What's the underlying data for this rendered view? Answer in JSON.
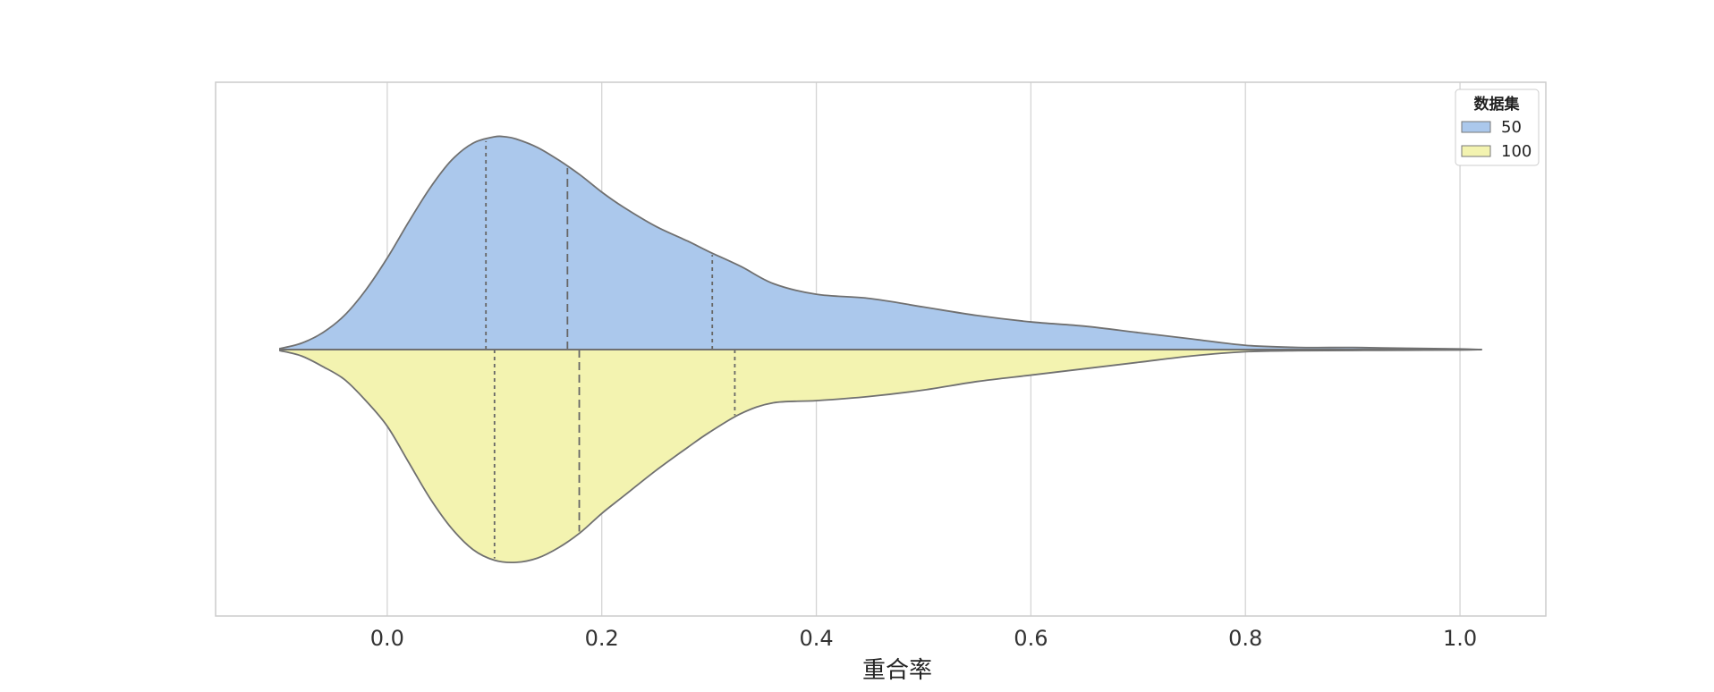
{
  "chart_data": {
    "type": "violin",
    "split": true,
    "orientation": "horizontal",
    "xlabel": "重合率",
    "ylabel": "",
    "xlim": [
      -0.16,
      1.08
    ],
    "xticks": [
      0.0,
      0.2,
      0.4,
      0.6,
      0.8,
      1.0
    ],
    "xtick_labels": [
      "0.0",
      "0.2",
      "0.4",
      "0.6",
      "0.8",
      "1.0"
    ],
    "grid": "vertical",
    "legend": {
      "title": "数据集",
      "placement": "top-right"
    },
    "series": [
      {
        "name": "50",
        "side": "upper",
        "color": "#abc8ec",
        "density_x": [
          -0.1,
          -0.08,
          -0.06,
          -0.04,
          -0.02,
          0.0,
          0.02,
          0.04,
          0.06,
          0.08,
          0.1,
          0.11,
          0.12,
          0.14,
          0.16,
          0.18,
          0.2,
          0.22,
          0.25,
          0.28,
          0.3,
          0.33,
          0.36,
          0.4,
          0.45,
          0.5,
          0.55,
          0.6,
          0.65,
          0.7,
          0.75,
          0.8,
          0.85,
          0.9,
          0.95,
          1.0,
          1.02
        ],
        "density": [
          0.005,
          0.03,
          0.08,
          0.16,
          0.28,
          0.43,
          0.6,
          0.76,
          0.89,
          0.97,
          1.0,
          1.0,
          0.99,
          0.95,
          0.89,
          0.82,
          0.74,
          0.67,
          0.58,
          0.51,
          0.46,
          0.39,
          0.31,
          0.26,
          0.24,
          0.2,
          0.16,
          0.13,
          0.11,
          0.08,
          0.05,
          0.02,
          0.01,
          0.01,
          0.006,
          0.003,
          0.0
        ],
        "quartiles": [
          0.092,
          0.168,
          0.303
        ]
      },
      {
        "name": "100",
        "side": "lower",
        "color": "#f3f3b0",
        "density_x": [
          -0.1,
          -0.08,
          -0.06,
          -0.04,
          -0.02,
          0.0,
          0.02,
          0.04,
          0.06,
          0.08,
          0.1,
          0.12,
          0.14,
          0.16,
          0.18,
          0.2,
          0.22,
          0.25,
          0.28,
          0.3,
          0.33,
          0.36,
          0.4,
          0.45,
          0.5,
          0.55,
          0.6,
          0.65,
          0.7,
          0.75,
          0.8,
          0.85,
          0.9,
          0.95,
          1.0,
          1.02
        ],
        "density": [
          0.005,
          0.03,
          0.08,
          0.14,
          0.24,
          0.36,
          0.53,
          0.7,
          0.84,
          0.94,
          0.99,
          1.0,
          0.98,
          0.93,
          0.86,
          0.77,
          0.69,
          0.57,
          0.46,
          0.39,
          0.3,
          0.25,
          0.24,
          0.22,
          0.19,
          0.15,
          0.12,
          0.09,
          0.06,
          0.03,
          0.01,
          0.005,
          0.004,
          0.003,
          0.002,
          0.0
        ],
        "quartiles": [
          0.1,
          0.179,
          0.324
        ]
      }
    ]
  }
}
